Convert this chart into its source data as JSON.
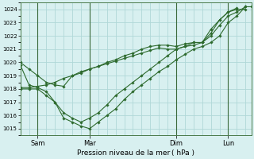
{
  "title": "",
  "xlabel": "Pression niveau de la mer ( hPa )",
  "background_color": "#d8f0f0",
  "grid_color": "#b0d8d8",
  "line_color": "#2d6a2d",
  "ylim": [
    1014.5,
    1024.5
  ],
  "yticks": [
    1015,
    1016,
    1017,
    1018,
    1019,
    1020,
    1021,
    1022,
    1023,
    1024
  ],
  "day_labels": [
    "Sam",
    "Mar",
    "Dim",
    "Lun"
  ],
  "day_positions": [
    12,
    48,
    108,
    144
  ],
  "vline_positions": [
    12,
    48,
    108,
    144
  ],
  "xlim": [
    0,
    160
  ],
  "series": [
    {
      "x": [
        0,
        6,
        12,
        18,
        24,
        30,
        36,
        42,
        48,
        54,
        60,
        66,
        72,
        78,
        84,
        90,
        96,
        102,
        108,
        114,
        120,
        126,
        132,
        138,
        144,
        150,
        156
      ],
      "y": [
        1020.0,
        1019.5,
        1019.0,
        1018.5,
        1018.3,
        1018.2,
        1019.0,
        1019.3,
        1019.5,
        1019.7,
        1019.9,
        1020.1,
        1020.3,
        1020.5,
        1020.7,
        1020.9,
        1021.1,
        1021.0,
        1021.0,
        1021.2,
        1021.3,
        1021.5,
        1022.2,
        1023.2,
        1023.8,
        1024.0,
        1024.0
      ]
    },
    {
      "x": [
        0,
        6,
        12,
        18,
        24,
        30,
        36,
        42,
        48,
        54,
        60,
        66,
        72,
        78,
        84,
        90,
        96,
        102,
        108,
        114,
        120,
        126,
        132,
        138,
        144,
        150,
        156,
        160
      ],
      "y": [
        1019.8,
        1018.3,
        1018.1,
        1017.8,
        1017.0,
        1015.8,
        1015.5,
        1015.2,
        1015.0,
        1015.5,
        1016.0,
        1016.5,
        1017.2,
        1017.8,
        1018.3,
        1018.8,
        1019.3,
        1019.7,
        1020.2,
        1020.6,
        1021.0,
        1021.2,
        1021.5,
        1022.0,
        1023.0,
        1023.5,
        1024.2,
        1024.2
      ]
    },
    {
      "x": [
        0,
        6,
        12,
        18,
        24,
        30,
        36,
        42,
        48,
        54,
        60,
        66,
        72,
        78,
        84,
        90,
        96,
        102,
        108,
        114,
        120,
        126,
        132,
        138,
        144,
        150,
        156
      ],
      "y": [
        1018.0,
        1018.0,
        1018.0,
        1017.5,
        1017.0,
        1016.2,
        1015.8,
        1015.5,
        1015.8,
        1016.2,
        1016.8,
        1017.5,
        1018.0,
        1018.5,
        1019.0,
        1019.5,
        1020.0,
        1020.5,
        1021.0,
        1021.2,
        1021.5,
        1021.5,
        1022.0,
        1022.8,
        1023.5,
        1023.8,
        1024.2
      ]
    },
    {
      "x": [
        0,
        6,
        12,
        18,
        24,
        30,
        36,
        42,
        48,
        54,
        60,
        66,
        72,
        78,
        84,
        90,
        96,
        102,
        108,
        114,
        120,
        126,
        132,
        138,
        144,
        150
      ],
      "y": [
        1018.1,
        1018.1,
        1018.2,
        1018.3,
        1018.5,
        1018.8,
        1019.0,
        1019.2,
        1019.5,
        1019.7,
        1020.0,
        1020.2,
        1020.5,
        1020.7,
        1021.0,
        1021.2,
        1021.3,
        1021.3,
        1021.2,
        1021.4,
        1021.5,
        1021.5,
        1022.5,
        1023.2,
        1023.8,
        1024.1
      ]
    }
  ],
  "markersize": 1.8,
  "linewidth": 0.8
}
